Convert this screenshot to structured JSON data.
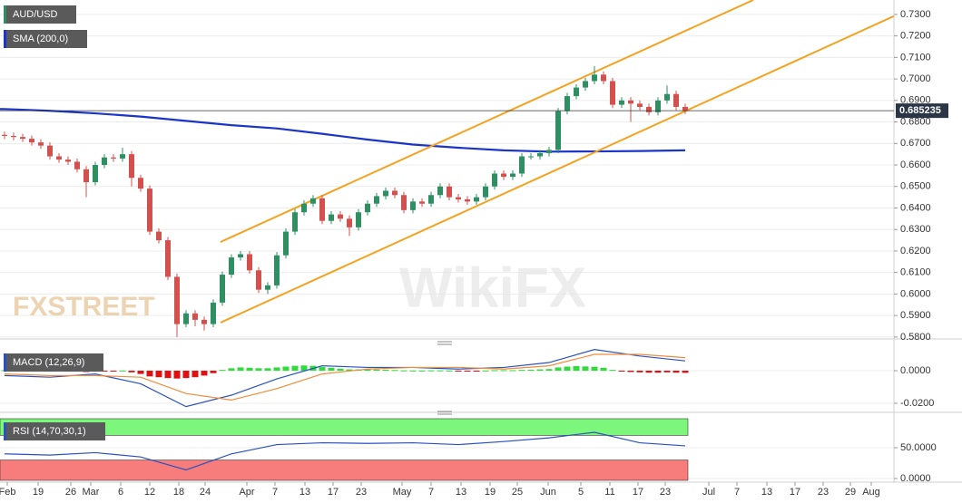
{
  "chart_data": [
    {
      "type": "candlestick",
      "title": "AUD/USD",
      "open": [
        0.674,
        0.6735,
        0.673,
        0.6722,
        0.6705,
        0.669,
        0.664,
        0.6625,
        0.6615,
        0.658,
        0.652,
        0.66,
        0.6635,
        0.663,
        0.665,
        0.654,
        0.649,
        0.629,
        0.625,
        0.608,
        0.586,
        0.591,
        0.588,
        0.586,
        0.596,
        0.609,
        0.617,
        0.6185,
        0.611,
        0.602,
        0.604,
        0.618,
        0.629,
        0.638,
        0.642,
        0.6445,
        0.634,
        0.637,
        0.635,
        0.631,
        0.638,
        0.642,
        0.6455,
        0.648,
        0.646,
        0.639,
        0.643,
        0.642,
        0.646,
        0.65,
        0.645,
        0.644,
        0.643,
        0.645,
        0.65,
        0.656,
        0.6545,
        0.656,
        0.664,
        0.664,
        0.6655,
        0.667,
        0.685,
        0.692,
        0.696,
        0.699,
        0.702,
        0.699,
        0.688,
        0.69,
        0.6885,
        0.687,
        0.6845,
        0.69,
        0.693,
        0.687
      ],
      "high": [
        0.6755,
        0.675,
        0.6745,
        0.6737,
        0.672,
        0.6705,
        0.6655,
        0.664,
        0.663,
        0.6595,
        0.6615,
        0.665,
        0.665,
        0.668,
        0.6665,
        0.6555,
        0.6505,
        0.6305,
        0.6265,
        0.6095,
        0.5925,
        0.5925,
        0.5895,
        0.5975,
        0.6105,
        0.6185,
        0.62,
        0.62,
        0.6125,
        0.6055,
        0.6195,
        0.6305,
        0.6395,
        0.6435,
        0.646,
        0.646,
        0.6385,
        0.6385,
        0.6365,
        0.6395,
        0.6435,
        0.647,
        0.6495,
        0.6495,
        0.6475,
        0.6445,
        0.6445,
        0.6475,
        0.6515,
        0.6515,
        0.6465,
        0.6455,
        0.6465,
        0.6515,
        0.6575,
        0.6575,
        0.6575,
        0.6655,
        0.6655,
        0.667,
        0.6685,
        0.6865,
        0.6935,
        0.6975,
        0.7005,
        0.706,
        0.7035,
        0.7005,
        0.6915,
        0.6915,
        0.69,
        0.6885,
        0.6915,
        0.697,
        0.6945,
        0.6885
      ],
      "low": [
        0.672,
        0.6715,
        0.6707,
        0.669,
        0.6675,
        0.6625,
        0.661,
        0.66,
        0.6565,
        0.645,
        0.6505,
        0.6585,
        0.6615,
        0.6615,
        0.65,
        0.6475,
        0.6275,
        0.6235,
        0.6065,
        0.58,
        0.5845,
        0.585,
        0.583,
        0.5845,
        0.5945,
        0.6075,
        0.6155,
        0.6095,
        0.6005,
        0.6,
        0.6025,
        0.6165,
        0.6275,
        0.6365,
        0.6405,
        0.6325,
        0.6325,
        0.6335,
        0.627,
        0.6295,
        0.6365,
        0.6405,
        0.644,
        0.6445,
        0.6375,
        0.6375,
        0.6405,
        0.6405,
        0.6445,
        0.6435,
        0.6425,
        0.6415,
        0.6415,
        0.6435,
        0.6485,
        0.653,
        0.653,
        0.6545,
        0.6625,
        0.6625,
        0.664,
        0.6655,
        0.6835,
        0.6905,
        0.6945,
        0.6975,
        0.6975,
        0.6865,
        0.6865,
        0.68,
        0.6855,
        0.683,
        0.683,
        0.6885,
        0.6855,
        0.6837
      ],
      "close": [
        0.6735,
        0.673,
        0.6722,
        0.6705,
        0.669,
        0.664,
        0.6625,
        0.6615,
        0.658,
        0.652,
        0.66,
        0.6635,
        0.663,
        0.665,
        0.654,
        0.649,
        0.629,
        0.625,
        0.608,
        0.586,
        0.591,
        0.588,
        0.586,
        0.596,
        0.609,
        0.617,
        0.6185,
        0.611,
        0.602,
        0.604,
        0.618,
        0.629,
        0.638,
        0.642,
        0.6445,
        0.634,
        0.637,
        0.635,
        0.631,
        0.638,
        0.642,
        0.6455,
        0.648,
        0.646,
        0.639,
        0.643,
        0.642,
        0.646,
        0.65,
        0.645,
        0.644,
        0.643,
        0.645,
        0.65,
        0.656,
        0.6545,
        0.656,
        0.664,
        0.664,
        0.6655,
        0.667,
        0.685,
        0.692,
        0.696,
        0.699,
        0.702,
        0.699,
        0.688,
        0.69,
        0.6885,
        0.687,
        0.6845,
        0.69,
        0.693,
        0.687,
        0.6852
      ],
      "up_color": "#2f8f63",
      "down_color": "#d2504e",
      "sma": {
        "name": "SMA (200,0)",
        "color": "#1a35c8",
        "x": [
          0,
          5,
          10,
          15,
          20,
          25,
          30,
          35,
          40,
          45,
          50,
          55,
          60,
          65,
          70,
          75
        ],
        "values": [
          0.686,
          0.6852,
          0.684,
          0.6825,
          0.6805,
          0.6785,
          0.677,
          0.6745,
          0.6718,
          0.6695,
          0.668,
          0.6668,
          0.6662,
          0.6663,
          0.6665,
          0.6668
        ]
      },
      "channels": [
        {
          "color": "#f5a21f",
          "x": [
            23.8,
            82.5
          ],
          "values": [
            0.6242,
            0.7367
          ]
        },
        {
          "color": "#f5a21f",
          "x": [
            23.8,
            98
          ],
          "values": [
            0.5867,
            0.7292
          ]
        }
      ],
      "last_price": 0.685235,
      "ylim": [
        0.5791,
        0.7367
      ],
      "yticks": [
        {
          "value": 0.58,
          "label": "0.5800"
        },
        {
          "value": 0.59,
          "label": "0.5900"
        },
        {
          "value": 0.6,
          "label": "0.6000"
        },
        {
          "value": 0.61,
          "label": "0.6100"
        },
        {
          "value": 0.62,
          "label": "0.6200"
        },
        {
          "value": 0.63,
          "label": "0.6300"
        },
        {
          "value": 0.64,
          "label": "0.6400"
        },
        {
          "value": 0.65,
          "label": "0.6500"
        },
        {
          "value": 0.66,
          "label": "0.6600"
        },
        {
          "value": 0.67,
          "label": "0.6700"
        },
        {
          "value": 0.68,
          "label": "0.6800"
        },
        {
          "value": 0.69,
          "label": "0.6900"
        },
        {
          "value": 0.7,
          "label": "0.7000"
        },
        {
          "value": 0.71,
          "label": "0.7100"
        },
        {
          "value": 0.72,
          "label": "0.7200"
        },
        {
          "value": 0.73,
          "label": "0.7300"
        }
      ],
      "xtick_labels": [
        "Feb",
        "19",
        "26",
        "Mar",
        "6",
        "12",
        "18",
        "24",
        "Apr",
        "7",
        "13",
        "17",
        "23",
        "May",
        "7",
        "13",
        "19",
        "25",
        "Jun",
        "5",
        "11",
        "17",
        "23",
        "Jul",
        "7",
        "13",
        "17",
        "23",
        "29",
        "Aug"
      ],
      "watermarks": [
        "FXSTREET",
        "WikiFX"
      ]
    },
    {
      "type": "macd",
      "title": "MACD (12,26,9)",
      "x": [
        0,
        5,
        10,
        15,
        20,
        25,
        30,
        35,
        40,
        45,
        50,
        55,
        60,
        65,
        70,
        75
      ],
      "series": [
        {
          "color": "#2a52be",
          "values": [
            -0.003,
            -0.004,
            -0.002,
            -0.008,
            -0.022,
            -0.015,
            -0.005,
            0.003,
            0.002,
            0.002,
            0.001,
            0.002,
            0.005,
            0.013,
            0.009,
            0.006
          ]
        },
        {
          "color": "#f08c3a",
          "values": [
            -0.002,
            -0.003,
            -0.003,
            -0.004,
            -0.014,
            -0.018,
            -0.011,
            -0.002,
            0.001,
            0.002,
            0.002,
            0.001,
            0.003,
            0.01,
            0.01,
            0.008
          ]
        }
      ],
      "histogram": [
        0.0003,
        0.0003,
        0.0002,
        0.0002,
        0.0003,
        0.0002,
        0.0001,
        -0.0002,
        -0.0005,
        -0.0008,
        -0.0006,
        -0.0003,
        -0.0002,
        0.0001,
        -0.001,
        -0.002,
        -0.0035,
        -0.004,
        -0.0045,
        -0.0048,
        -0.0045,
        -0.004,
        -0.003,
        -0.0015,
        0.0005,
        0.0015,
        0.002,
        0.0018,
        0.0015,
        0.0015,
        0.002,
        0.0025,
        0.003,
        0.0032,
        0.003,
        0.0022,
        0.0018,
        0.0012,
        0.0008,
        0.0008,
        0.0008,
        0.0007,
        0.0006,
        0.0004,
        0.0002,
        0.0001,
        0.0001,
        0.0002,
        0.0002,
        0.0001,
        -0.0002,
        -0.0003,
        -0.0002,
        0.0001,
        0.0003,
        0.0003,
        0.0003,
        0.0005,
        0.0006,
        0.0008,
        0.001,
        0.002,
        0.0025,
        0.0028,
        0.0026,
        0.0024,
        0.0018,
        0.0005,
        -0.0003,
        -0.0008,
        -0.001,
        -0.0012,
        -0.0012,
        -0.001,
        -0.0012,
        -0.0013
      ],
      "up_color": "#2fdc3a",
      "down_color": "#e01010",
      "ylim": [
        -0.025,
        0.0139
      ],
      "yticks": [
        {
          "value": 0,
          "label": "0.0000"
        },
        {
          "value": -0.02,
          "label": "-0.0200"
        }
      ]
    },
    {
      "type": "line",
      "title": "RSI (14,70,30,1)",
      "x": [
        0,
        5,
        10,
        15,
        20,
        25,
        30,
        35,
        40,
        45,
        50,
        55,
        60,
        65,
        70,
        75
      ],
      "values": [
        40,
        38,
        42,
        35,
        14,
        40,
        55,
        58,
        57,
        58,
        55,
        60,
        66,
        75,
        58,
        53
      ],
      "color": "#2a52be",
      "levels": [
        30,
        70
      ],
      "ylim": [
        -3,
        100
      ],
      "yticks": [
        {
          "value": 50,
          "label": "50.0000"
        },
        {
          "value": 0,
          "label": "0.0000"
        }
      ]
    }
  ]
}
